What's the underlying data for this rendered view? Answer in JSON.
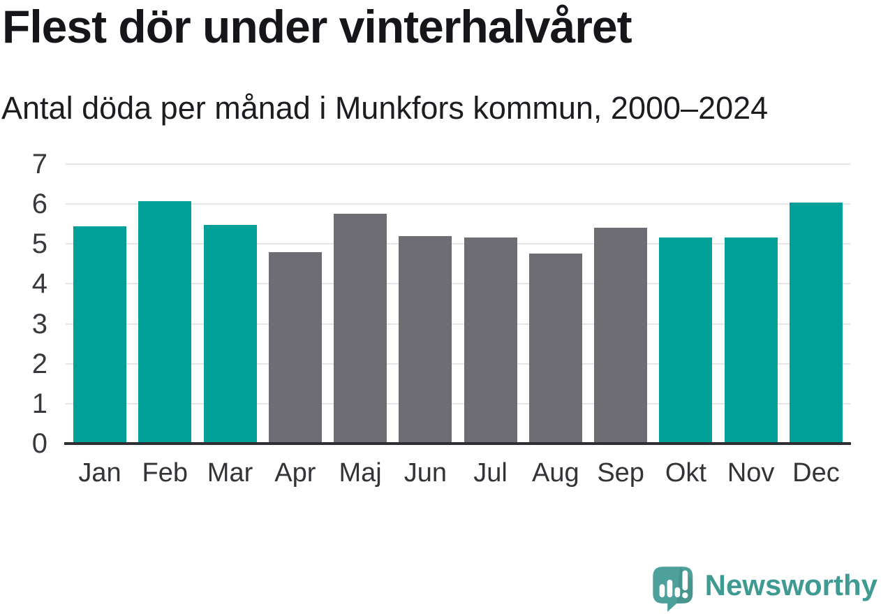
{
  "header": {
    "title": "Flest dör under vinterhalvåret",
    "subtitle": "Antal döda per månad i Munkfors kommun, 2000–2024"
  },
  "chart_data": {
    "type": "bar",
    "title": "Flest dör under vinterhalvåret",
    "subtitle": "Antal döda per månad i Munkfors kommun, 2000–2024",
    "categories": [
      "Jan",
      "Feb",
      "Mar",
      "Apr",
      "Maj",
      "Jun",
      "Jul",
      "Aug",
      "Sep",
      "Okt",
      "Nov",
      "Dec"
    ],
    "values": [
      5.44,
      6.08,
      5.48,
      4.8,
      5.76,
      5.2,
      5.16,
      4.76,
      5.4,
      5.16,
      5.16,
      6.04
    ],
    "bar_groups": [
      "winter",
      "winter",
      "winter",
      "summer",
      "summer",
      "summer",
      "summer",
      "summer",
      "summer",
      "winter",
      "winter",
      "winter"
    ],
    "colors": {
      "winter": "#00a099",
      "summer": "#6e6d73"
    },
    "xlabel": "",
    "ylabel": "",
    "ylim": [
      0,
      7
    ],
    "yticks": [
      0,
      1,
      2,
      3,
      4,
      5,
      6,
      7
    ],
    "grid": true,
    "legend_position": "none",
    "axis_color": "#2f2f33",
    "gridline_color": "#e6e5e7"
  },
  "footer": {
    "brand": "Newsworthy",
    "brand_color": "#3f9a92",
    "logo_icon": "newsworthy-speech-bubble-bar-chart-icon",
    "logo_fill": "#4ea19b"
  }
}
